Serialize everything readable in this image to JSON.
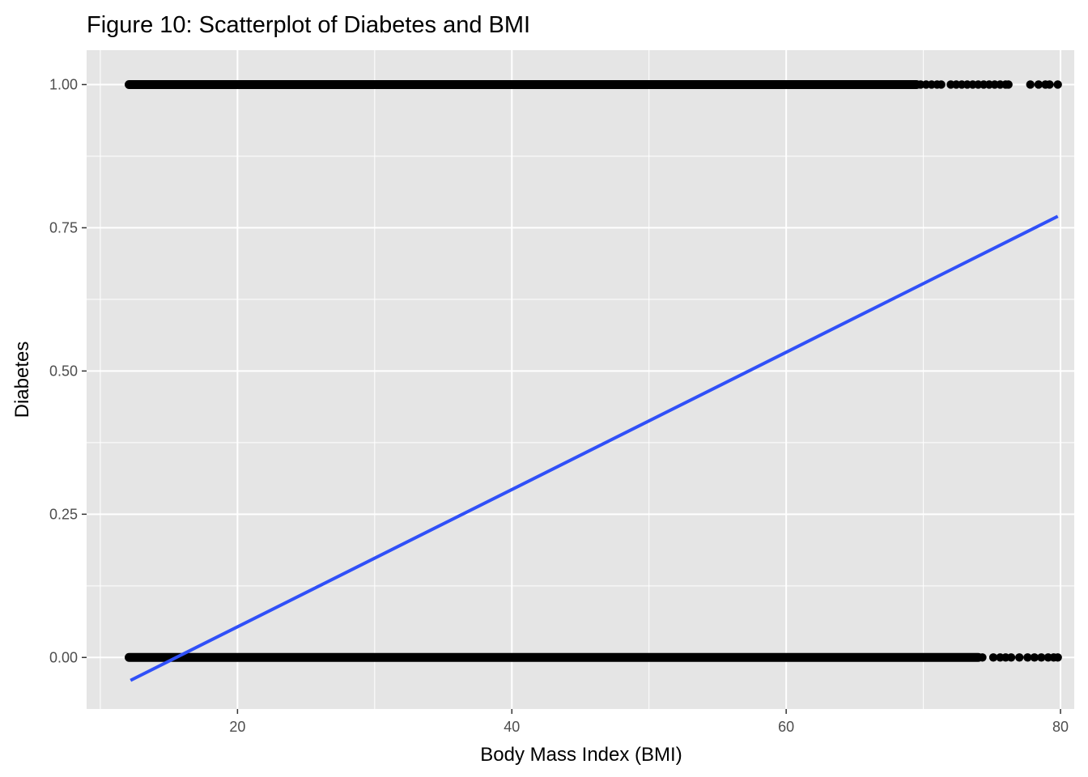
{
  "chart_data": {
    "type": "scatter",
    "title": "Figure 10: Scatterplot of Diabetes and BMI",
    "xlabel": "Body Mass Index (BMI)",
    "ylabel": "Diabetes",
    "xlim": [
      9,
      81
    ],
    "ylim": [
      -0.09,
      1.06
    ],
    "x_ticks": [
      20,
      40,
      60,
      80
    ],
    "x_tick_labels": [
      "20",
      "40",
      "60",
      "80"
    ],
    "y_ticks": [
      0,
      0.25,
      0.5,
      0.75,
      1
    ],
    "y_tick_labels": [
      "0.00",
      "0.25",
      "0.50",
      "0.75",
      "1.00"
    ],
    "grid": true,
    "legend": "none",
    "point_color": "#000000",
    "line_color": "#3050F8",
    "panel_color": "#E5E5E5",
    "series": [
      {
        "type": "scatter",
        "y_value": 1,
        "x_dense_range": [
          12.1,
          69.5
        ],
        "x": [
          69.8,
          70.2,
          70.6,
          71.0,
          71.3,
          72.0,
          72.4,
          72.8,
          73.2,
          73.6,
          74.0,
          74.4,
          74.8,
          75.2,
          75.6,
          76.0,
          76.2,
          77.8,
          78.4,
          78.9,
          79.2,
          79.8
        ]
      },
      {
        "type": "scatter",
        "y_value": 0,
        "x_dense_range": [
          12.1,
          74.0
        ],
        "x": [
          74.3,
          75.1,
          75.6,
          76.0,
          76.4,
          77.0,
          77.6,
          78.1,
          78.6,
          79.1,
          79.5,
          79.8
        ]
      },
      {
        "type": "line",
        "x": [
          12.2,
          79.8
        ],
        "y": [
          -0.04,
          0.77
        ]
      }
    ]
  }
}
